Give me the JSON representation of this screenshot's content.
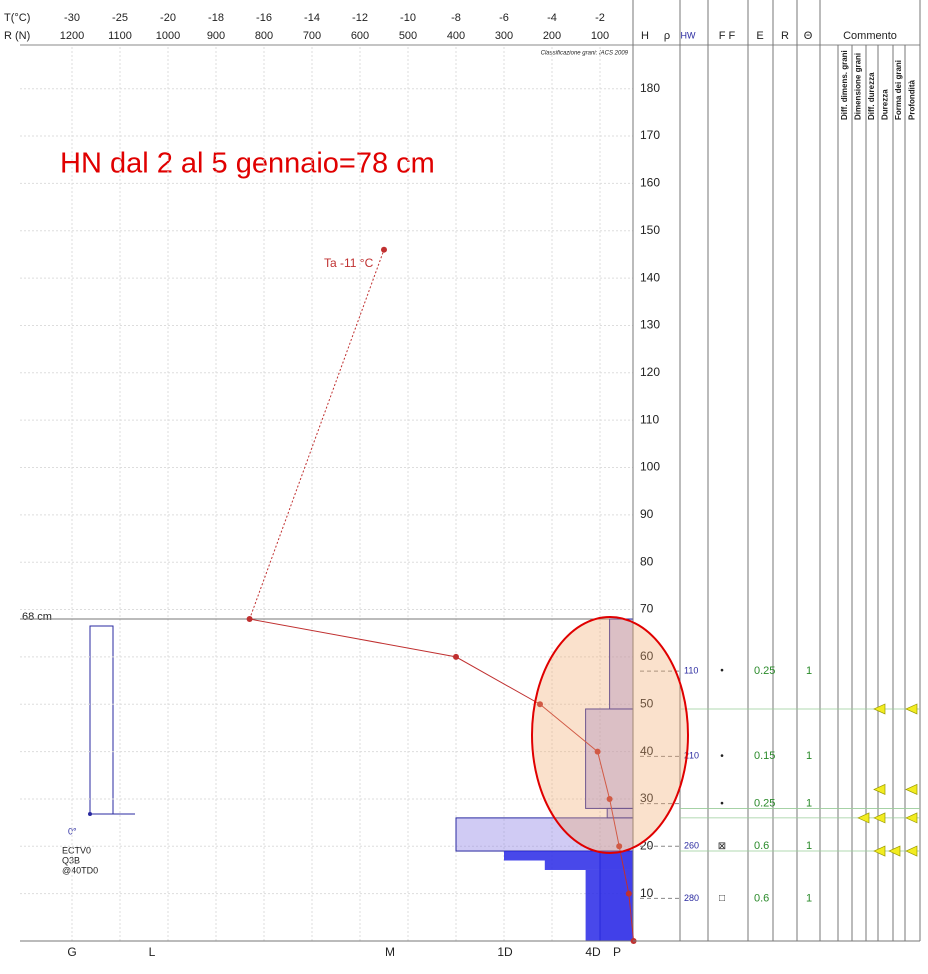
{
  "header": {
    "t_label": "T(°C)",
    "r_label": "R (N)",
    "t_ticks": [
      -30,
      -25,
      -20,
      -18,
      -16,
      -14,
      -12,
      -10,
      -8,
      -6,
      -4,
      -2
    ],
    "r_ticks": [
      1200,
      1100,
      1000,
      900,
      800,
      700,
      600,
      500,
      400,
      300,
      200,
      100
    ]
  },
  "classification": "Classificazione grani: IACS 2009",
  "annotation": "HN dal 2 al 5 gennaio=78 cm",
  "snow_height_label": "68 cm",
  "columns": {
    "h": "H",
    "rho": "ρ",
    "hw": "HW",
    "ff": "F F",
    "e": "E",
    "r": "R",
    "theta": "Θ",
    "comment": "Commento"
  },
  "h_ticks": [
    10,
    20,
    30,
    40,
    50,
    60,
    70,
    80,
    90,
    100,
    110,
    120,
    130,
    140,
    150,
    160,
    170,
    180
  ],
  "comment_headers": [
    "Diff. dimens. grani",
    "Dimensione grani",
    "Diff. durezza",
    "Durezza",
    "Forma dei grani",
    "Profondità"
  ],
  "temperature": {
    "label": "Ta -11 °C",
    "air_h": 146,
    "air_t": -11,
    "h": [
      68,
      60,
      50,
      40,
      30,
      20,
      10,
      0
    ],
    "t": [
      -16.6,
      -8,
      -4.5,
      -2.1,
      -1.6,
      -1.2,
      -0.8,
      -0.6
    ]
  },
  "hardness_layers": [
    {
      "top": 68,
      "bottom": 49,
      "r": 80
    },
    {
      "top": 49,
      "bottom": 28,
      "r": 130
    },
    {
      "top": 28,
      "bottom": 26,
      "r": 85
    },
    {
      "top": 26,
      "bottom": 19,
      "r": 400
    },
    {
      "top": 19,
      "bottom": 0,
      "r": 100
    }
  ],
  "ram_profile": [
    {
      "top": 19,
      "bottom": 17,
      "r": 300
    },
    {
      "top": 17,
      "bottom": 15,
      "r": 215
    },
    {
      "top": 15,
      "bottom": 0,
      "r": 130
    }
  ],
  "layers": [
    {
      "h": 57,
      "hw": "110",
      "ff": "•",
      "e": "0.25",
      "theta": "1"
    },
    {
      "h": 39,
      "hw": "210",
      "ff": "•",
      "e": "0.15",
      "theta": "1"
    },
    {
      "h": 29,
      "ff": "•",
      "e": "0.25",
      "theta": "1"
    },
    {
      "h": 20,
      "hw": "260",
      "ff": "⊠",
      "e": "0.6",
      "theta": "1"
    },
    {
      "h": 9,
      "hw": "280",
      "ff": "□",
      "e": "0.6",
      "theta": "1"
    }
  ],
  "hand_hardness": [
    "G",
    "L",
    "M",
    "1D",
    "4D",
    "P"
  ],
  "stability_test": {
    "angle": "0°",
    "lines": [
      "ECTV0",
      "Q3B",
      "@40TD0"
    ]
  }
}
